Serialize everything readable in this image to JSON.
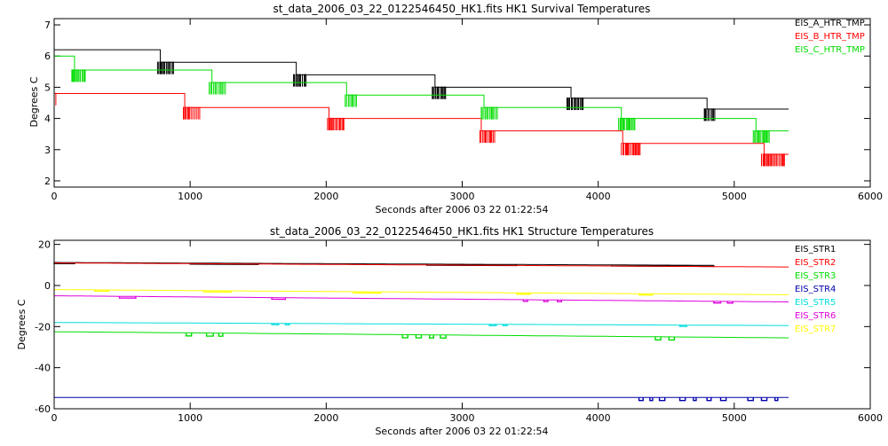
{
  "chart_data": [
    {
      "type": "line",
      "title": "st_data_2006_03_22_0122546450_HK1.fits HK1 Survival Temperatures",
      "xlabel": "Seconds after 2006 03 22 01:22:54",
      "ylabel": "Degrees C",
      "xlim": [
        0,
        6000
      ],
      "ylim": [
        1.8,
        7.2
      ],
      "xticks": [
        0,
        1000,
        2000,
        3000,
        4000,
        5000,
        6000
      ],
      "yticks": [
        2,
        3,
        4,
        5,
        6,
        7
      ],
      "grid": false,
      "legend": "top-right",
      "series": [
        {
          "name": "EIS_A_HTR_TMP",
          "color": "#000000",
          "steps": [
            [
              0,
              6.2
            ],
            [
              780,
              5.8
            ],
            [
              1780,
              5.4
            ],
            [
              2800,
              5.0
            ],
            [
              3800,
              4.65
            ],
            [
              4800,
              4.3
            ]
          ],
          "end": 5400,
          "noise": [
            [
              760,
              880
            ],
            [
              1760,
              1860
            ],
            [
              2780,
              2880
            ],
            [
              3770,
              3890
            ],
            [
              4780,
              4860
            ]
          ]
        },
        {
          "name": "EIS_B_HTR_TMP",
          "color": "#ff0000",
          "steps": [
            [
              0,
              4.8
            ],
            [
              960,
              4.35
            ],
            [
              2020,
              4.0
            ],
            [
              3140,
              3.6
            ],
            [
              4180,
              3.2
            ],
            [
              5220,
              2.85
            ]
          ],
          "end": 5400,
          "noise": [
            [
              0,
              20
            ],
            [
              950,
              1080
            ],
            [
              2010,
              2140
            ],
            [
              3130,
              3240
            ],
            [
              4170,
              4310
            ],
            [
              5200,
              5380
            ]
          ]
        },
        {
          "name": "EIS_C_HTR_TMP",
          "color": "#00dd00",
          "steps": [
            [
              0,
              6.0
            ],
            [
              150,
              5.55
            ],
            [
              1160,
              5.15
            ],
            [
              2150,
              4.75
            ],
            [
              3160,
              4.35
            ],
            [
              4170,
              4.0
            ],
            [
              5160,
              3.6
            ]
          ],
          "end": 5400,
          "noise": [
            [
              130,
              240
            ],
            [
              1140,
              1260
            ],
            [
              2140,
              2230
            ],
            [
              3140,
              3260
            ],
            [
              4150,
              4270
            ],
            [
              5140,
              5260
            ]
          ]
        }
      ]
    },
    {
      "type": "line",
      "title": "st_data_2006_03_22_0122546450_HK1.fits HK1 Structure Temperatures",
      "xlabel": "Seconds after 2006 03 22 01:22:54",
      "ylabel": "Degrees C",
      "xlim": [
        0,
        6000
      ],
      "ylim": [
        -60,
        22
      ],
      "xticks": [
        0,
        1000,
        2000,
        3000,
        4000,
        5000,
        6000
      ],
      "yticks": [
        -60,
        -40,
        -20,
        0,
        20
      ],
      "grid": false,
      "legend": "top-right",
      "series": [
        {
          "name": "EIS_STR1",
          "color": "#000000",
          "start_value": 11.2,
          "end_value": 9.8,
          "end": 4850,
          "dip": 0.5,
          "dips": [
            [
              0,
              150
            ],
            [
              1000,
              1500
            ],
            [
              2740,
              3400
            ],
            [
              4100,
              4850
            ]
          ]
        },
        {
          "name": "EIS_STR2",
          "color": "#ff0000",
          "start_value": 11.0,
          "end_value": 9.0,
          "end": 5400,
          "dip": 0.4,
          "dips": []
        },
        {
          "name": "EIS_STR3",
          "color": "#00dd00",
          "start_value": -22.5,
          "end_value": -25.5,
          "end": 5400,
          "dip": 1.5,
          "dips": [
            [
              970,
              1010
            ],
            [
              1120,
              1170
            ],
            [
              1210,
              1240
            ],
            [
              2560,
              2600
            ],
            [
              2660,
              2700
            ],
            [
              2760,
              2790
            ],
            [
              2840,
              2880
            ],
            [
              4420,
              4460
            ],
            [
              4520,
              4560
            ]
          ]
        },
        {
          "name": "EIS_STR4",
          "color": "#0000aa",
          "start_value": -54.5,
          "end_value": -54.5,
          "end": 5400,
          "dip": 1.5,
          "dips": [
            [
              4300,
              4330
            ],
            [
              4380,
              4400
            ],
            [
              4450,
              4490
            ],
            [
              4600,
              4640
            ],
            [
              4700,
              4720
            ],
            [
              4800,
              4830
            ],
            [
              4900,
              4940
            ],
            [
              5100,
              5140
            ],
            [
              5200,
              5240
            ],
            [
              5300,
              5320
            ]
          ]
        },
        {
          "name": "EIS_STR5",
          "color": "#00dddd",
          "start_value": -18.0,
          "end_value": -19.5,
          "end": 5400,
          "dip": 0.6,
          "dips": [
            [
              1600,
              1650
            ],
            [
              1700,
              1730
            ],
            [
              3200,
              3250
            ],
            [
              3300,
              3330
            ],
            [
              4600,
              4650
            ]
          ]
        },
        {
          "name": "EIS_STR6",
          "color": "#dd00dd",
          "start_value": -5.0,
          "end_value": -8.0,
          "end": 5400,
          "dip": 0.8,
          "dips": [
            [
              480,
              600
            ],
            [
              1600,
              1700
            ],
            [
              3450,
              3480
            ],
            [
              3600,
              3630
            ],
            [
              3700,
              3730
            ],
            [
              4850,
              4900
            ],
            [
              4950,
              4990
            ]
          ]
        },
        {
          "name": "EIS_STR7",
          "color": "#ffff00",
          "start_value": -2.0,
          "end_value": -4.5,
          "end": 5400,
          "dip": 0.6,
          "dips": [
            [
              300,
              400
            ],
            [
              1100,
              1300
            ],
            [
              2200,
              2400
            ],
            [
              3400,
              3500
            ],
            [
              4300,
              4400
            ]
          ]
        }
      ]
    }
  ]
}
